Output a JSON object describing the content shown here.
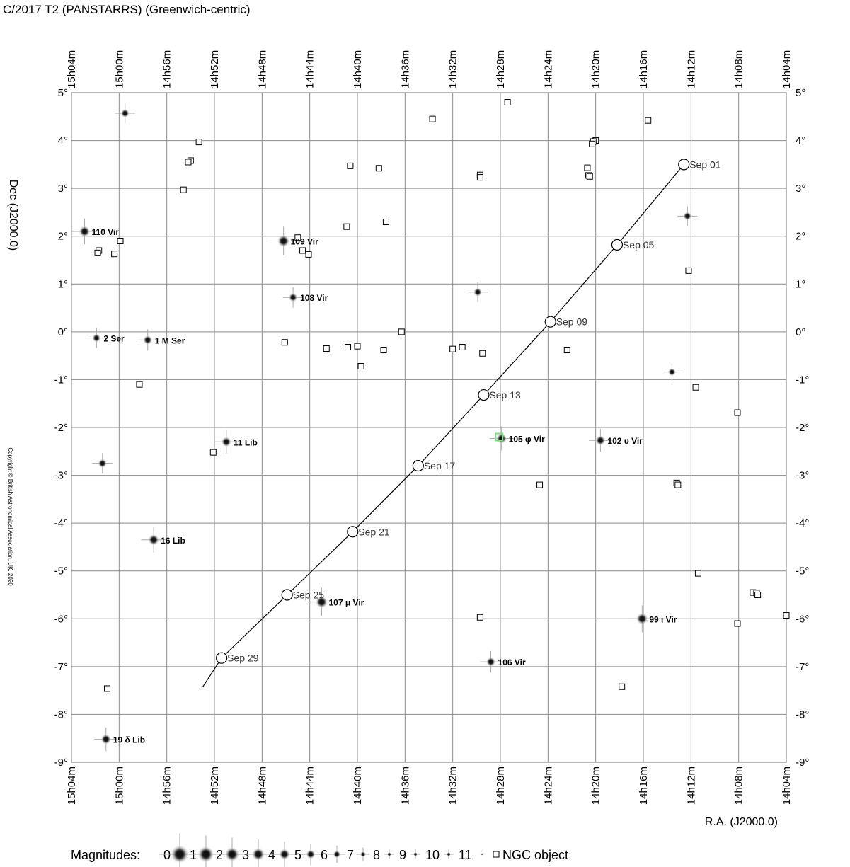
{
  "title": "C/2017 T2 (PANSTARRS)  (Greenwich-centric)",
  "copyright": "Copyright © British Astronomical Association, UK, 2020",
  "chart_data": {
    "type": "scatter",
    "title": "C/2017 T2 (PANSTARRS)  (Greenwich-centric)",
    "xlabel": "R.A. (J2000.0)",
    "ylabel": "Dec (J2000.0)",
    "x_unit": "minutes of right ascension",
    "xlim": [
      904,
      844
    ],
    "ylim": [
      -9,
      5
    ],
    "x_reversed": true,
    "grid": true,
    "x_ticks": [
      {
        "v": 904,
        "label": "15h04m"
      },
      {
        "v": 900,
        "label": "15h00m"
      },
      {
        "v": 896,
        "label": "14h56m"
      },
      {
        "v": 892,
        "label": "14h52m"
      },
      {
        "v": 888,
        "label": "14h48m"
      },
      {
        "v": 884,
        "label": "14h44m"
      },
      {
        "v": 880,
        "label": "14h40m"
      },
      {
        "v": 876,
        "label": "14h36m"
      },
      {
        "v": 872,
        "label": "14h32m"
      },
      {
        "v": 868,
        "label": "14h28m"
      },
      {
        "v": 864,
        "label": "14h24m"
      },
      {
        "v": 860,
        "label": "14h20m"
      },
      {
        "v": 856,
        "label": "14h16m"
      },
      {
        "v": 852,
        "label": "14h12m"
      },
      {
        "v": 848,
        "label": "14h08m"
      },
      {
        "v": 844,
        "label": "14h04m"
      }
    ],
    "y_ticks": [
      {
        "v": 5,
        "label": "5°"
      },
      {
        "v": 4,
        "label": "4°"
      },
      {
        "v": 3,
        "label": "3°"
      },
      {
        "v": 2,
        "label": "2°"
      },
      {
        "v": 1,
        "label": "1°"
      },
      {
        "v": 0,
        "label": "0°"
      },
      {
        "v": -1,
        "label": "-1°"
      },
      {
        "v": -2,
        "label": "-2°"
      },
      {
        "v": -3,
        "label": "-3°"
      },
      {
        "v": -4,
        "label": "-4°"
      },
      {
        "v": -5,
        "label": "-5°"
      },
      {
        "v": -6,
        "label": "-6°"
      },
      {
        "v": -7,
        "label": "-7°"
      },
      {
        "v": -8,
        "label": "-8°"
      },
      {
        "v": -9,
        "label": "-9°"
      }
    ],
    "comet_path": [
      {
        "ra": 852.6,
        "dec": 3.5
      },
      {
        "ra": 858.2,
        "dec": 1.82
      },
      {
        "ra": 863.8,
        "dec": 0.21
      },
      {
        "ra": 869.4,
        "dec": -1.32
      },
      {
        "ra": 874.9,
        "dec": -2.8
      },
      {
        "ra": 880.4,
        "dec": -4.18
      },
      {
        "ra": 885.9,
        "dec": -5.5
      },
      {
        "ra": 891.4,
        "dec": -6.82
      },
      {
        "ra": 893.0,
        "dec": -7.43
      }
    ],
    "comet_positions": [
      {
        "date": "Sep 01",
        "ra": 852.6,
        "dec": 3.5
      },
      {
        "date": "Sep 05",
        "ra": 858.2,
        "dec": 1.82
      },
      {
        "date": "Sep 09",
        "ra": 863.8,
        "dec": 0.21
      },
      {
        "date": "Sep 13",
        "ra": 869.4,
        "dec": -1.32
      },
      {
        "date": "Sep 17",
        "ra": 874.9,
        "dec": -2.8
      },
      {
        "date": "Sep 21",
        "ra": 880.4,
        "dec": -4.18
      },
      {
        "date": "Sep 25",
        "ra": 885.9,
        "dec": -5.5
      },
      {
        "date": "Sep 29",
        "ra": 891.4,
        "dec": -6.82
      }
    ],
    "stars": [
      {
        "name": "110 Vir",
        "ra": 902.9,
        "dec": 2.1,
        "mag": 4.4
      },
      {
        "name": "109 Vir",
        "ra": 886.2,
        "dec": 1.9,
        "mag": 3.7
      },
      {
        "name": "108 Vir",
        "ra": 885.4,
        "dec": 0.72,
        "mag": 5.7
      },
      {
        "name": "2 Ser",
        "ra": 901.9,
        "dec": -0.13,
        "mag": 5.9
      },
      {
        "name": "1 M Ser",
        "ra": 897.6,
        "dec": -0.17,
        "mag": 5.5
      },
      {
        "name": "11 Lib",
        "ra": 891.0,
        "dec": -2.3,
        "mag": 5.0
      },
      {
        "name": "105 φ Vir",
        "ra": 867.9,
        "dec": -2.23,
        "mag": 4.8
      },
      {
        "name": "102 υ Vir",
        "ra": 859.6,
        "dec": -2.27,
        "mag": 5.1
      },
      {
        "name": "16 Lib",
        "ra": 897.1,
        "dec": -4.35,
        "mag": 4.5
      },
      {
        "name": "107 μ Vir",
        "ra": 883.0,
        "dec": -5.65,
        "mag": 3.9
      },
      {
        "name": "99 ι Vir",
        "ra": 856.1,
        "dec": -6.0,
        "mag": 4.1
      },
      {
        "name": "106 Vir",
        "ra": 868.8,
        "dec": -6.9,
        "mag": 5.4
      },
      {
        "name": "19 δ Lib",
        "ra": 901.1,
        "dec": -8.52,
        "mag": 4.9
      },
      {
        "name": "",
        "ra": 899.5,
        "dec": 4.57,
        "mag": 5.8
      },
      {
        "name": "",
        "ra": 852.3,
        "dec": 2.42,
        "mag": 5.9
      },
      {
        "name": "",
        "ra": 869.9,
        "dec": 0.83,
        "mag": 5.9
      },
      {
        "name": "",
        "ra": 853.6,
        "dec": -0.84,
        "mag": 6.3
      },
      {
        "name": "",
        "ra": 901.4,
        "dec": -2.75,
        "mag": 5.7
      }
    ],
    "highlight": {
      "ra": 868.1,
      "dec": -2.2,
      "color": "#7ee07e"
    },
    "ngc_objects": [
      {
        "ra": 867.4,
        "dec": 4.8
      },
      {
        "ra": 873.7,
        "dec": 4.45
      },
      {
        "ra": 855.6,
        "dec": 4.42
      },
      {
        "ra": 893.3,
        "dec": 3.97
      },
      {
        "ra": 860.0,
        "dec": 4.0
      },
      {
        "ra": 860.2,
        "dec": 3.98
      },
      {
        "ra": 860.3,
        "dec": 3.93
      },
      {
        "ra": 894.0,
        "dec": 3.58
      },
      {
        "ra": 894.2,
        "dec": 3.55
      },
      {
        "ra": 880.6,
        "dec": 3.47
      },
      {
        "ra": 878.2,
        "dec": 3.42
      },
      {
        "ra": 860.7,
        "dec": 3.43
      },
      {
        "ra": 869.7,
        "dec": 3.28
      },
      {
        "ra": 869.7,
        "dec": 3.23
      },
      {
        "ra": 860.6,
        "dec": 3.27
      },
      {
        "ra": 860.5,
        "dec": 3.25
      },
      {
        "ra": 894.6,
        "dec": 2.97
      },
      {
        "ra": 877.6,
        "dec": 2.3
      },
      {
        "ra": 880.9,
        "dec": 2.2
      },
      {
        "ra": 885.0,
        "dec": 1.97
      },
      {
        "ra": 899.9,
        "dec": 1.9
      },
      {
        "ra": 901.7,
        "dec": 1.7
      },
      {
        "ra": 901.8,
        "dec": 1.65
      },
      {
        "ra": 900.4,
        "dec": 1.63
      },
      {
        "ra": 884.6,
        "dec": 1.7
      },
      {
        "ra": 884.1,
        "dec": 1.62
      },
      {
        "ra": 852.2,
        "dec": 1.28
      },
      {
        "ra": 876.3,
        "dec": 0.0
      },
      {
        "ra": 886.1,
        "dec": -0.22
      },
      {
        "ra": 882.6,
        "dec": -0.35
      },
      {
        "ra": 880.8,
        "dec": -0.32
      },
      {
        "ra": 880.0,
        "dec": -0.3
      },
      {
        "ra": 877.8,
        "dec": -0.38
      },
      {
        "ra": 872.0,
        "dec": -0.36
      },
      {
        "ra": 871.2,
        "dec": -0.32
      },
      {
        "ra": 869.5,
        "dec": -0.45
      },
      {
        "ra": 862.4,
        "dec": -0.38
      },
      {
        "ra": 879.7,
        "dec": -0.72
      },
      {
        "ra": 898.3,
        "dec": -1.1
      },
      {
        "ra": 851.6,
        "dec": -1.16
      },
      {
        "ra": 848.1,
        "dec": -1.69
      },
      {
        "ra": 892.1,
        "dec": -2.52
      },
      {
        "ra": 864.7,
        "dec": -3.2
      },
      {
        "ra": 853.2,
        "dec": -3.16
      },
      {
        "ra": 853.1,
        "dec": -3.2
      },
      {
        "ra": 851.4,
        "dec": -5.05
      },
      {
        "ra": 846.8,
        "dec": -5.45
      },
      {
        "ra": 846.5,
        "dec": -5.46
      },
      {
        "ra": 846.4,
        "dec": -5.5
      },
      {
        "ra": 869.7,
        "dec": -5.97
      },
      {
        "ra": 844.0,
        "dec": -5.93
      },
      {
        "ra": 848.1,
        "dec": -6.1
      },
      {
        "ra": 857.8,
        "dec": -7.42
      },
      {
        "ra": 901.0,
        "dec": -7.46
      }
    ],
    "legend": {
      "label": "Magnitudes:",
      "placement": "bottom",
      "magnitudes": [
        "0",
        "1",
        "2",
        "3",
        "4",
        "5",
        "6",
        "7",
        "8",
        "9",
        "10",
        "11"
      ],
      "ngc_label": "NGC object"
    }
  }
}
